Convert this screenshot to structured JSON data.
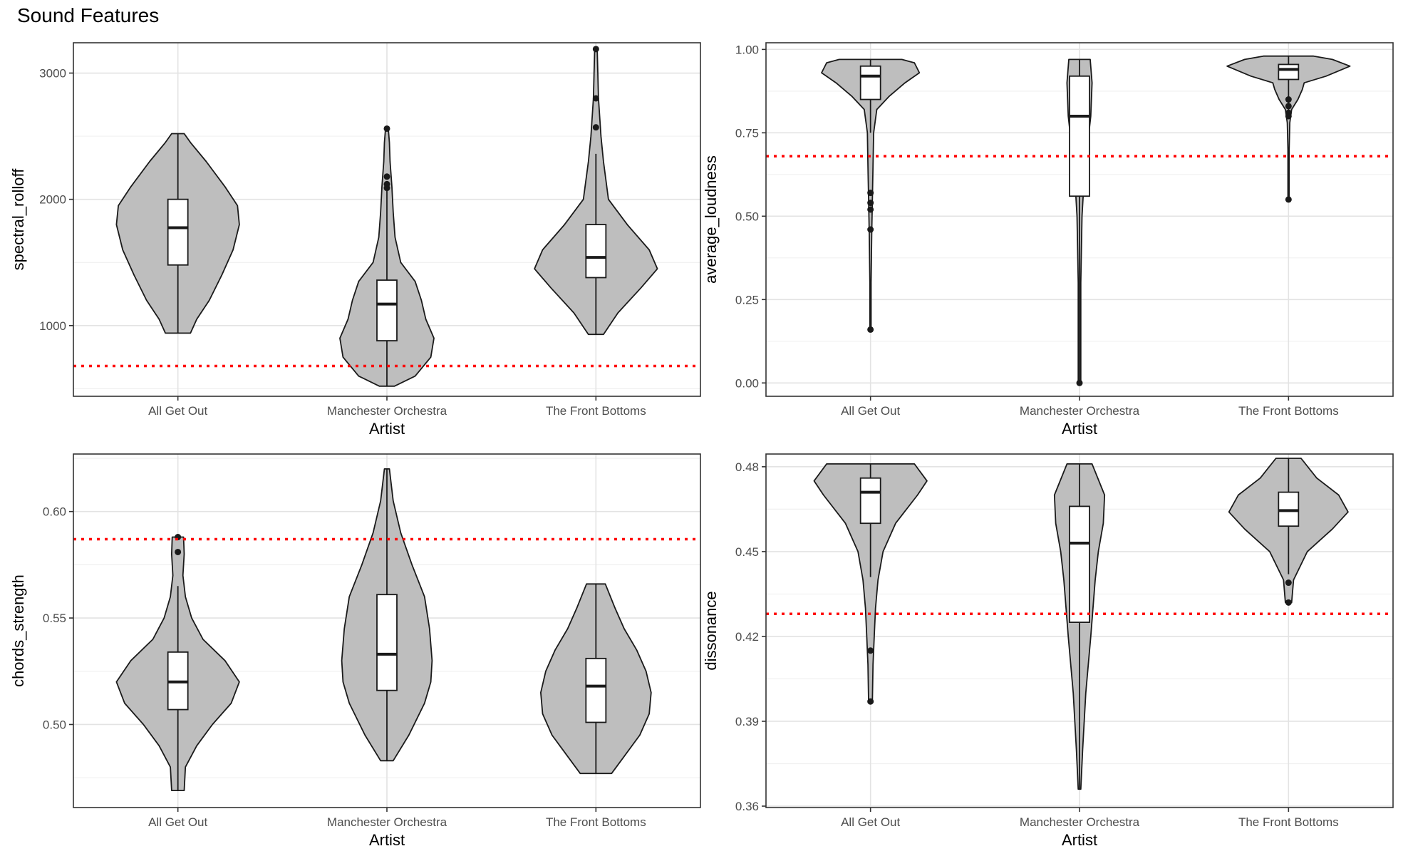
{
  "title": "Sound Features",
  "colors": {
    "violin_fill": "#bebebe",
    "stroke": "#1a1a1a",
    "box_fill": "#ffffff",
    "reference_line": "#ff0000",
    "grid_major": "#e3e3e3",
    "grid_minor": "#f0f0f0"
  },
  "chart_data": [
    {
      "type": "violin",
      "title": "",
      "xlabel": "Artist",
      "ylabel": "spectral_rolloff",
      "ylim": [
        440,
        3240
      ],
      "yticks": [
        1000,
        2000,
        3000
      ],
      "grid": true,
      "reference_line": 680,
      "categories": [
        "All Get Out",
        "Manchester Orchestra",
        "The Front Bottoms"
      ],
      "groups": [
        {
          "category": "All Get Out",
          "box": {
            "q1": 1480,
            "median": 1775,
            "q3": 2000,
            "whisker_low": 940,
            "whisker_high": 2520
          },
          "outliers": [],
          "density": [
            [
              940,
              0.2
            ],
            [
              1050,
              0.3
            ],
            [
              1200,
              0.5
            ],
            [
              1400,
              0.7
            ],
            [
              1600,
              0.88
            ],
            [
              1800,
              0.98
            ],
            [
              1950,
              0.95
            ],
            [
              2100,
              0.75
            ],
            [
              2300,
              0.45
            ],
            [
              2450,
              0.2
            ],
            [
              2520,
              0.1
            ]
          ]
        },
        {
          "category": "Manchester Orchestra",
          "box": {
            "q1": 880,
            "median": 1170,
            "q3": 1360,
            "whisker_low": 520,
            "whisker_high": 2070
          },
          "outliers": [
            2560,
            2180,
            2120,
            2090
          ],
          "density": [
            [
              520,
              0.12
            ],
            [
              600,
              0.45
            ],
            [
              750,
              0.7
            ],
            [
              900,
              0.75
            ],
            [
              1050,
              0.62
            ],
            [
              1200,
              0.55
            ],
            [
              1350,
              0.45
            ],
            [
              1500,
              0.22
            ],
            [
              1700,
              0.13
            ],
            [
              1900,
              0.1
            ],
            [
              2100,
              0.08
            ],
            [
              2300,
              0.05
            ],
            [
              2450,
              0.04
            ],
            [
              2570,
              0.02
            ]
          ]
        },
        {
          "category": "The Front Bottoms",
          "box": {
            "q1": 1380,
            "median": 1540,
            "q3": 1800,
            "whisker_low": 930,
            "whisker_high": 2360
          },
          "outliers": [
            3190,
            2800,
            2570
          ],
          "density": [
            [
              930,
              0.12
            ],
            [
              1100,
              0.35
            ],
            [
              1300,
              0.72
            ],
            [
              1450,
              0.98
            ],
            [
              1600,
              0.85
            ],
            [
              1800,
              0.5
            ],
            [
              2000,
              0.2
            ],
            [
              2300,
              0.12
            ],
            [
              2500,
              0.08
            ],
            [
              2800,
              0.04
            ],
            [
              3000,
              0.03
            ],
            [
              3190,
              0.02
            ]
          ]
        }
      ]
    },
    {
      "type": "violin",
      "title": "",
      "xlabel": "Artist",
      "ylabel": "average_loudness",
      "ylim": [
        -0.04,
        1.02
      ],
      "yticks": [
        0.0,
        0.25,
        0.5,
        0.75,
        1.0
      ],
      "grid": true,
      "reference_line": 0.68,
      "categories": [
        "All Get Out",
        "Manchester Orchestra",
        "The Front Bottoms"
      ],
      "groups": [
        {
          "category": "All Get Out",
          "box": {
            "q1": 0.85,
            "median": 0.92,
            "q3": 0.95,
            "whisker_low": 0.75,
            "whisker_high": 0.97
          },
          "outliers": [
            0.57,
            0.54,
            0.52,
            0.46,
            0.16
          ],
          "density": [
            [
              0.16,
              0.01
            ],
            [
              0.3,
              0.01
            ],
            [
              0.45,
              0.02
            ],
            [
              0.55,
              0.03
            ],
            [
              0.65,
              0.04
            ],
            [
              0.75,
              0.05
            ],
            [
              0.82,
              0.1
            ],
            [
              0.86,
              0.3
            ],
            [
              0.9,
              0.55
            ],
            [
              0.93,
              0.78
            ],
            [
              0.96,
              0.7
            ],
            [
              0.97,
              0.5
            ]
          ]
        },
        {
          "category": "Manchester Orchestra",
          "box": {
            "q1": 0.56,
            "median": 0.8,
            "q3": 0.92,
            "whisker_low": 0.0,
            "whisker_high": 0.97
          },
          "outliers": [
            0.0
          ],
          "density": [
            [
              0.0,
              0.02
            ],
            [
              0.3,
              0.02
            ],
            [
              0.5,
              0.04
            ],
            [
              0.6,
              0.07
            ],
            [
              0.7,
              0.12
            ],
            [
              0.8,
              0.18
            ],
            [
              0.9,
              0.2
            ],
            [
              0.97,
              0.17
            ]
          ]
        },
        {
          "category": "The Front Bottoms",
          "box": {
            "q1": 0.91,
            "median": 0.94,
            "q3": 0.955,
            "whisker_low": 0.8,
            "whisker_high": 0.98
          },
          "outliers": [
            0.85,
            0.83,
            0.81,
            0.8,
            0.55
          ],
          "density": [
            [
              0.55,
              0.01
            ],
            [
              0.7,
              0.01
            ],
            [
              0.78,
              0.02
            ],
            [
              0.82,
              0.05
            ],
            [
              0.85,
              0.15
            ],
            [
              0.88,
              0.22
            ],
            [
              0.9,
              0.25
            ],
            [
              0.92,
              0.6
            ],
            [
              0.95,
              0.98
            ],
            [
              0.97,
              0.7
            ],
            [
              0.98,
              0.4
            ]
          ]
        }
      ]
    },
    {
      "type": "violin",
      "title": "",
      "xlabel": "Artist",
      "ylabel": "chords_strength",
      "ylim": [
        0.461,
        0.627
      ],
      "yticks": [
        0.5,
        0.55,
        0.6
      ],
      "grid": true,
      "reference_line": 0.587,
      "categories": [
        "All Get Out",
        "Manchester Orchestra",
        "The Front Bottoms"
      ],
      "groups": [
        {
          "category": "All Get Out",
          "box": {
            "q1": 0.507,
            "median": 0.52,
            "q3": 0.534,
            "whisker_low": 0.469,
            "whisker_high": 0.565
          },
          "outliers": [
            0.588,
            0.581
          ],
          "density": [
            [
              0.469,
              0.1
            ],
            [
              0.48,
              0.12
            ],
            [
              0.49,
              0.3
            ],
            [
              0.5,
              0.55
            ],
            [
              0.51,
              0.85
            ],
            [
              0.52,
              0.98
            ],
            [
              0.53,
              0.75
            ],
            [
              0.54,
              0.4
            ],
            [
              0.55,
              0.22
            ],
            [
              0.56,
              0.12
            ],
            [
              0.57,
              0.08
            ],
            [
              0.58,
              0.1
            ],
            [
              0.588,
              0.09
            ]
          ]
        },
        {
          "category": "Manchester Orchestra",
          "box": {
            "q1": 0.516,
            "median": 0.533,
            "q3": 0.561,
            "whisker_low": 0.483,
            "whisker_high": 0.62
          },
          "outliers": [],
          "density": [
            [
              0.483,
              0.1
            ],
            [
              0.495,
              0.35
            ],
            [
              0.51,
              0.6
            ],
            [
              0.52,
              0.7
            ],
            [
              0.53,
              0.72
            ],
            [
              0.545,
              0.68
            ],
            [
              0.56,
              0.6
            ],
            [
              0.575,
              0.4
            ],
            [
              0.59,
              0.22
            ],
            [
              0.605,
              0.1
            ],
            [
              0.62,
              0.04
            ]
          ]
        },
        {
          "category": "The Front Bottoms",
          "box": {
            "q1": 0.501,
            "median": 0.518,
            "q3": 0.531,
            "whisker_low": 0.477,
            "whisker_high": 0.566
          },
          "outliers": [],
          "density": [
            [
              0.477,
              0.25
            ],
            [
              0.485,
              0.45
            ],
            [
              0.495,
              0.7
            ],
            [
              0.505,
              0.85
            ],
            [
              0.515,
              0.88
            ],
            [
              0.525,
              0.8
            ],
            [
              0.535,
              0.65
            ],
            [
              0.545,
              0.45
            ],
            [
              0.555,
              0.3
            ],
            [
              0.566,
              0.15
            ]
          ]
        }
      ]
    },
    {
      "type": "violin",
      "title": "",
      "xlabel": "Artist",
      "ylabel": "dissonance",
      "ylim": [
        0.3595,
        0.4845
      ],
      "yticks": [
        0.36,
        0.39,
        0.42,
        0.45,
        0.48
      ],
      "grid": true,
      "reference_line": 0.428,
      "categories": [
        "All Get Out",
        "Manchester Orchestra",
        "The Front Bottoms"
      ],
      "groups": [
        {
          "category": "All Get Out",
          "box": {
            "q1": 0.46,
            "median": 0.471,
            "q3": 0.476,
            "whisker_low": 0.441,
            "whisker_high": 0.481
          },
          "outliers": [
            0.415,
            0.397
          ],
          "density": [
            [
              0.397,
              0.03
            ],
            [
              0.41,
              0.04
            ],
            [
              0.42,
              0.06
            ],
            [
              0.43,
              0.08
            ],
            [
              0.44,
              0.12
            ],
            [
              0.45,
              0.2
            ],
            [
              0.46,
              0.4
            ],
            [
              0.47,
              0.75
            ],
            [
              0.475,
              0.9
            ],
            [
              0.481,
              0.7
            ]
          ]
        },
        {
          "category": "Manchester Orchestra",
          "box": {
            "q1": 0.425,
            "median": 0.453,
            "q3": 0.466,
            "whisker_low": 0.366,
            "whisker_high": 0.481
          },
          "outliers": [],
          "density": [
            [
              0.366,
              0.02
            ],
            [
              0.38,
              0.05
            ],
            [
              0.4,
              0.1
            ],
            [
              0.42,
              0.18
            ],
            [
              0.44,
              0.25
            ],
            [
              0.45,
              0.3
            ],
            [
              0.46,
              0.38
            ],
            [
              0.47,
              0.4
            ],
            [
              0.481,
              0.2
            ]
          ]
        },
        {
          "category": "The Front Bottoms",
          "box": {
            "q1": 0.459,
            "median": 0.4645,
            "q3": 0.471,
            "whisker_low": 0.442,
            "whisker_high": 0.483
          },
          "outliers": [
            0.439,
            0.432
          ],
          "density": [
            [
              0.432,
              0.05
            ],
            [
              0.44,
              0.08
            ],
            [
              0.45,
              0.3
            ],
            [
              0.458,
              0.7
            ],
            [
              0.464,
              0.95
            ],
            [
              0.47,
              0.8
            ],
            [
              0.476,
              0.45
            ],
            [
              0.483,
              0.2
            ]
          ]
        }
      ]
    }
  ]
}
